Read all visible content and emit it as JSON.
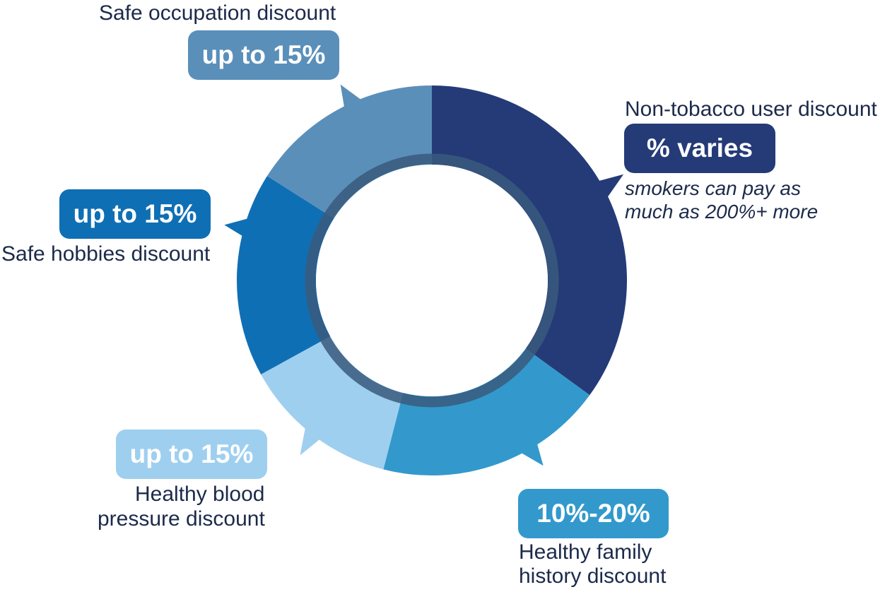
{
  "chart_data": {
    "type": "pie",
    "variant": "donut",
    "segments": [
      {
        "key": "non_tobacco",
        "caption": "Non-tobacco user discount",
        "badge": "% varies",
        "note_lines": [
          "smokers can pay as",
          "much as 200%+ more"
        ],
        "share": 0.35,
        "color": "#253b78"
      },
      {
        "key": "family_history",
        "caption_lines": [
          "Healthy family",
          "history discount"
        ],
        "badge": "10%-20%",
        "share": 0.19,
        "color": "#3399cc"
      },
      {
        "key": "blood_pressure",
        "caption_lines": [
          "Healthy blood",
          "pressure discount"
        ],
        "badge": "up to 15%",
        "share": 0.13,
        "color": "#9fcfef"
      },
      {
        "key": "safe_hobbies",
        "caption": "Safe hobbies discount",
        "badge": "up to 15%",
        "share": 0.17,
        "color": "#0f6fb4"
      },
      {
        "key": "safe_occupation",
        "caption": "Safe occupation discount",
        "badge": "up to 15%",
        "share": 0.16,
        "color": "#5a8fba"
      }
    ]
  }
}
